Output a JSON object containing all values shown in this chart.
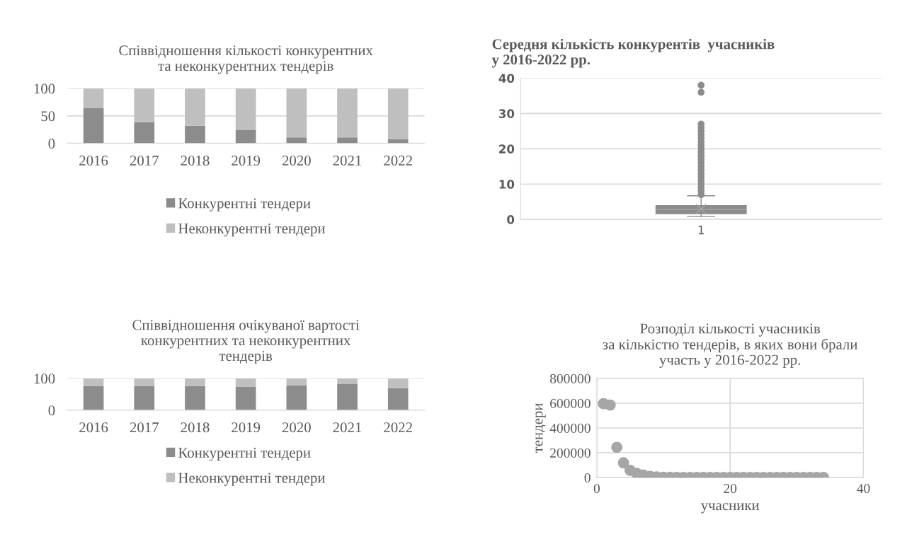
{
  "chart_data": [
    {
      "type": "bar",
      "stacked": true,
      "title": "Співвідношення кількості конкурентних\nта неконкурентних тендерів",
      "categories": [
        "2016",
        "2017",
        "2018",
        "2019",
        "2020",
        "2021",
        "2022"
      ],
      "ylim": [
        0,
        100
      ],
      "yticks": [
        0,
        50,
        100
      ],
      "grid": "y",
      "legend": "bottom",
      "series": [
        {
          "name": "Конкурентні тендери",
          "color": "#8c8c8c",
          "values": [
            64,
            39,
            32,
            24,
            11,
            11,
            8
          ]
        },
        {
          "name": "Неконкурентні тендери",
          "color": "#bfbfbf",
          "values": [
            36,
            61,
            68,
            76,
            89,
            89,
            92
          ]
        }
      ]
    },
    {
      "type": "box",
      "title": "Середня кількість конкурентів  учасників\nу 2016-2022 рр.",
      "categories": [
        "1"
      ],
      "ylim": [
        0,
        40
      ],
      "yticks": [
        0,
        10,
        20,
        30,
        40
      ],
      "grid": "y",
      "series": [
        {
          "color": "#8c8c8c",
          "boxes": [
            {
              "low": 0.8,
              "q1": 1.6,
              "median": 2.8,
              "q3": 3.9,
              "high": 6.7,
              "mean": 2.9,
              "outliers": [
                7,
                8,
                9,
                10,
                11,
                12,
                13,
                14,
                15,
                16,
                17,
                18,
                19,
                20,
                21,
                22,
                23,
                24,
                25,
                26,
                27,
                36,
                38
              ]
            }
          ]
        }
      ]
    },
    {
      "type": "bar",
      "stacked": true,
      "title": "Співвідношення очікуваної вартості\nконкурентних та неконкурентних\nтендерів",
      "categories": [
        "2016",
        "2017",
        "2018",
        "2019",
        "2020",
        "2021",
        "2022"
      ],
      "ylim": [
        0,
        100
      ],
      "yticks": [
        0,
        100
      ],
      "grid": "y",
      "legend": "bottom",
      "series": [
        {
          "name": "Конкурентні тендери",
          "color": "#8c8c8c",
          "values": [
            76,
            76,
            76,
            74,
            78,
            82,
            69
          ]
        },
        {
          "name": "Неконкурентні тендери",
          "color": "#bfbfbf",
          "values": [
            24,
            24,
            24,
            26,
            22,
            18,
            31
          ]
        }
      ]
    },
    {
      "type": "scatter",
      "title": "Розподіл кількості учасників\nза кількістю тендерів, в яких вони брали\nучасть у 2016-2022 рр.",
      "xlabel": "учасники",
      "ylabel": "тендери",
      "xlim": [
        0,
        40
      ],
      "xticks": [
        0,
        20,
        40
      ],
      "ylim": [
        0,
        800000
      ],
      "yticks": [
        0,
        200000,
        400000,
        600000,
        800000
      ],
      "grid": true,
      "marker": "circle",
      "series": [
        {
          "color": "#a6a6a6",
          "x": [
            1,
            2,
            3,
            4,
            5,
            6,
            7,
            8,
            9,
            10,
            11,
            12,
            13,
            14,
            15,
            16,
            17,
            18,
            19,
            20,
            21,
            22,
            23,
            24,
            25,
            26,
            27,
            28,
            29,
            30,
            31,
            32,
            33,
            34
          ],
          "values": [
            596000,
            585000,
            244000,
            119000,
            58000,
            33000,
            19000,
            10000,
            5000,
            3000,
            2000,
            1500,
            1000,
            1000,
            1000,
            1000,
            1000,
            1000,
            1000,
            1000,
            1000,
            1000,
            1000,
            1000,
            1000,
            1000,
            1000,
            1000,
            1000,
            1000,
            1000,
            1000,
            1000,
            1000
          ]
        }
      ]
    }
  ]
}
